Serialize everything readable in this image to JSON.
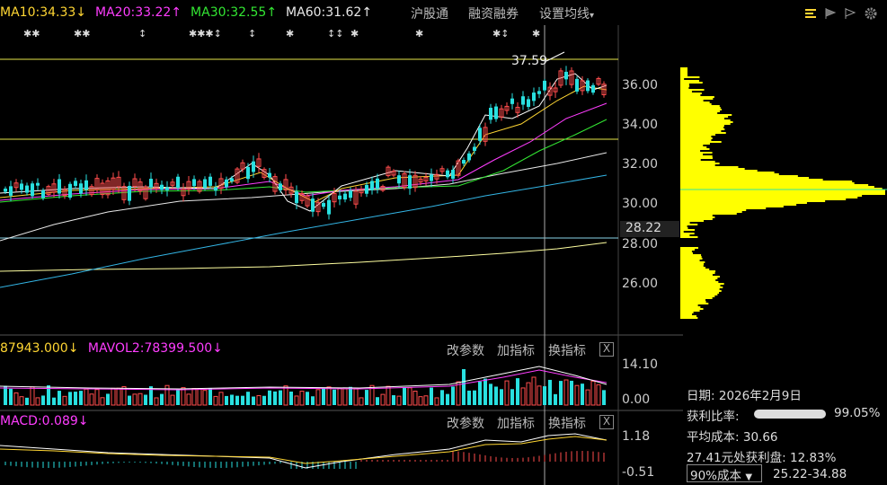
{
  "ma_legend": [
    {
      "label": "MA10:34.33",
      "arrow": "↓",
      "color": "#ffd633"
    },
    {
      "label": "MA20:33.22",
      "arrow": "↑",
      "color": "#ff3dff"
    },
    {
      "label": "MA30:32.55",
      "arrow": "↑",
      "color": "#33e633"
    },
    {
      "label": "MA60:31.62",
      "arrow": "↑",
      "color": "#e8e8e8"
    }
  ],
  "menu": {
    "hugutong": "沪股通",
    "rongzi": "融资融券",
    "settings": "设置均线"
  },
  "y_axis": {
    "labels": [
      "36.00",
      "34.00",
      "32.00",
      "30.00",
      "28.00",
      "26.00"
    ],
    "current": "28.22"
  },
  "annotations": {
    "high": "37.59"
  },
  "volume": {
    "vol_label": "87943.000",
    "vol_arrow": "↓",
    "mavol2_label": "MAVOL2:78399.500",
    "mavol2_arrow": "↓",
    "y_top": "14.10",
    "y_bottom": "0.00"
  },
  "macd": {
    "label": "MACD:0.089",
    "arrow": "↓",
    "y_top": "1.18",
    "y_bottom": "-0.51"
  },
  "panel_buttons": {
    "params": "改参数",
    "add": "加指标",
    "switch": "换指标",
    "close": "X"
  },
  "info": {
    "date_label": "日期:",
    "date_value": "2026年2月9日",
    "profit_ratio_label": "获利比率:",
    "profit_ratio_value": "99.05%",
    "avg_cost_label": "平均成本:",
    "avg_cost_value": "30.66",
    "profit_at_label": "27.41元处获利盘:",
    "profit_at_value": "12.83%",
    "cost_select": "90%成本",
    "cost_range": "25.22-34.88"
  },
  "colors": {
    "up": "#ff4d4d",
    "down": "#29e0e0",
    "ma5": "#ffffff",
    "ma10": "#ffd633",
    "ma20": "#ff3dff",
    "ma30": "#33e633",
    "ma60": "#e8e8e8",
    "ma120": "#33b5e5",
    "ma250": "#ffffa0",
    "chip": "#ffff00"
  }
}
